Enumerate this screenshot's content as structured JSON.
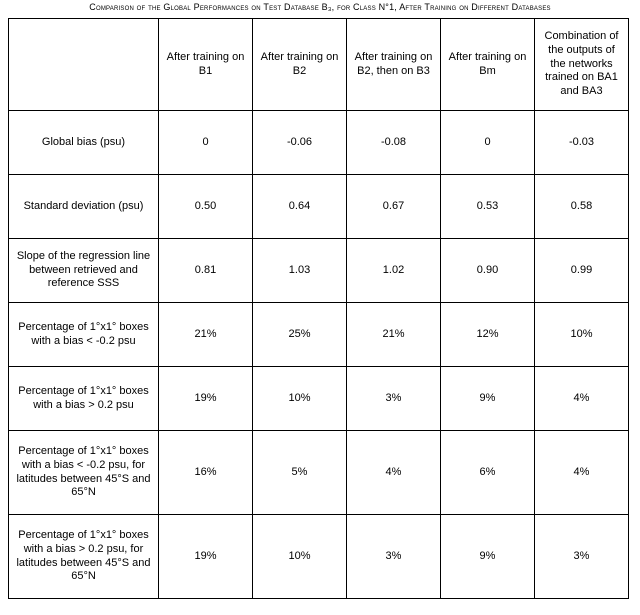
{
  "caption": "Comparison of the Global Performances on Test Database B₃, for Class N°1, After Training on Different Databases",
  "columns": [
    "After training on B1",
    "After training on B2",
    "After training on B2, then on B3",
    "After training on Bm",
    "Combination of the outputs of the networks trained on BA1 and BA3"
  ],
  "rows": [
    {
      "label": "Global bias (psu)",
      "cells": [
        "0",
        "-0.06",
        "-0.08",
        "0",
        "-0.03"
      ],
      "tall": false
    },
    {
      "label": "Standard deviation (psu)",
      "cells": [
        "0.50",
        "0.64",
        "0.67",
        "0.53",
        "0.58"
      ],
      "tall": false
    },
    {
      "label": "Slope of the regression line between retrieved and reference SSS",
      "cells": [
        "0.81",
        "1.03",
        "1.02",
        "0.90",
        "0.99"
      ],
      "tall": false
    },
    {
      "label": "Percentage of 1°x1° boxes with a bias < -0.2 psu",
      "cells": [
        "21%",
        "25%",
        "21%",
        "12%",
        "10%"
      ],
      "tall": false
    },
    {
      "label": "Percentage of 1°x1° boxes with a bias > 0.2 psu",
      "cells": [
        "19%",
        "10%",
        "3%",
        "9%",
        "4%"
      ],
      "tall": false
    },
    {
      "label": "Percentage of 1°x1° boxes with a bias < -0.2 psu, for latitudes between 45°S and 65°N",
      "cells": [
        "16%",
        "5%",
        "4%",
        "6%",
        "4%"
      ],
      "tall": true
    },
    {
      "label": "Percentage of 1°x1° boxes with a bias > 0.2 psu, for latitudes between 45°S and 65°N",
      "cells": [
        "19%",
        "10%",
        "3%",
        "9%",
        "3%"
      ],
      "tall": true
    }
  ]
}
